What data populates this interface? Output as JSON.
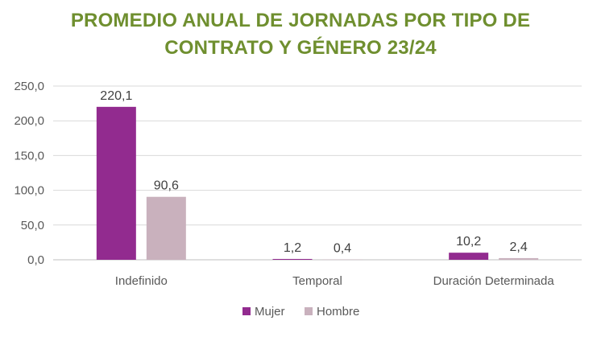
{
  "chart_data": {
    "type": "bar",
    "title_lines": [
      "PROMEDIO ANUAL DE JORNADAS POR TIPO DE",
      "CONTRATO Y GÉNERO 23/24"
    ],
    "categories": [
      "Indefinido",
      "Temporal",
      "Duración Determinada"
    ],
    "series": [
      {
        "name": "Mujer",
        "values": [
          220.1,
          1.2,
          10.2
        ],
        "labels": [
          "220,1",
          "1,2",
          "10,2"
        ],
        "color": "#922b8f"
      },
      {
        "name": "Hombre",
        "values": [
          90.6,
          0.4,
          2.4
        ],
        "labels": [
          "90,6",
          "0,4",
          "2,4"
        ],
        "color": "#c9b1bd"
      }
    ],
    "ylim": [
      0,
      250
    ],
    "yticks": [
      0,
      50,
      100,
      150,
      200,
      250
    ],
    "ytick_labels": [
      "0,0",
      "50,0",
      "100,0",
      "150,0",
      "200,0",
      "250,0"
    ],
    "grid": true,
    "legend": "bottom-center",
    "title_color": "#6f8f2f"
  }
}
